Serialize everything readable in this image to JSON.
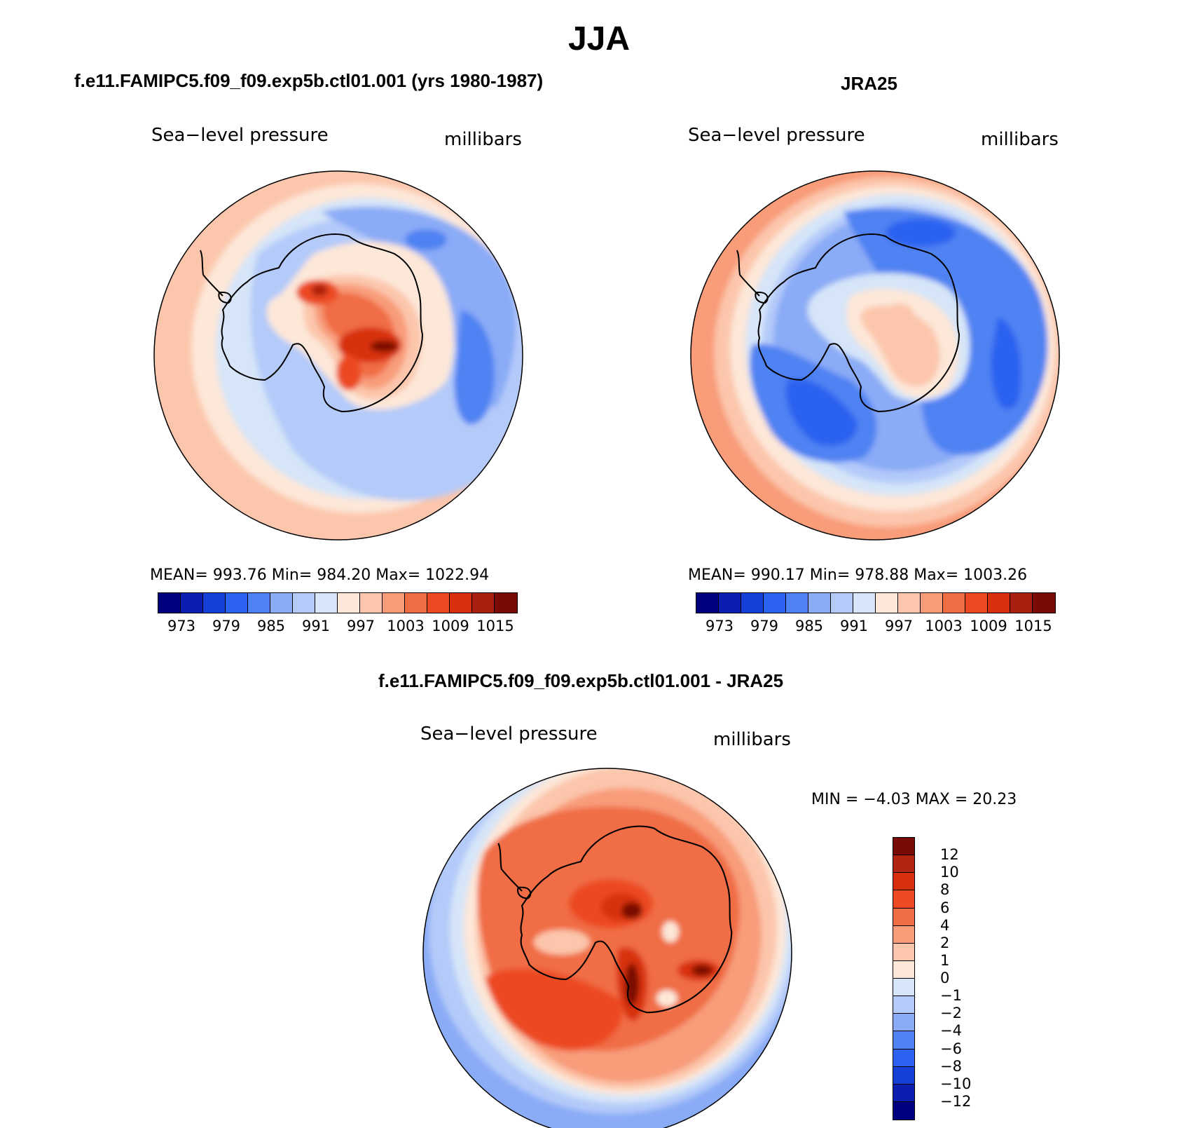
{
  "figure": {
    "title": "JJA"
  },
  "panels": [
    {
      "title": "f.e11.FAMIPC5.f09_f09.exp5b.ctl01.001 (yrs 1980-1987)",
      "variable": "Sea−level pressure",
      "units": "millibars",
      "stats": "MEAN=  993.76    Min=  984.20    Max=  1022.94"
    },
    {
      "title": "JRA25",
      "variable": "Sea−level pressure",
      "units": "millibars",
      "stats": "MEAN=  990.17    Min=  978.88    Max=  1003.26"
    },
    {
      "title": "f.e11.FAMIPC5.f09_f09.exp5b.ctl01.001 - JRA25",
      "variable": "Sea−level pressure",
      "units": "millibars",
      "stats": "MIN =   −4.03  MAX =   20.23"
    }
  ],
  "abs_colorbar": {
    "colors": [
      "#00007f",
      "#0a1fb0",
      "#1740d8",
      "#2b62f0",
      "#4f82f2",
      "#8aabf6",
      "#b4caf9",
      "#d6e5f8",
      "#fde7d8",
      "#fcc6ac",
      "#f89c7a",
      "#f06d44",
      "#ec4a22",
      "#d8300f",
      "#ab1f0e",
      "#7a0a06"
    ],
    "tick_labels": [
      "973",
      "979",
      "985",
      "991",
      "997",
      "1003",
      "1009",
      "1015"
    ]
  },
  "diff_colorbar": {
    "colors_top_to_bottom": [
      "#7a0a06",
      "#b02410",
      "#d8300f",
      "#ec4a22",
      "#f06d44",
      "#f89c7a",
      "#fcc6ac",
      "#fde7d8",
      "#d6e5f8",
      "#b4caf9",
      "#8aabf6",
      "#4f82f2",
      "#2b62f0",
      "#1740d8",
      "#0a1fb0",
      "#00007f"
    ],
    "tick_labels_top_to_bottom": [
      "12",
      "10",
      "8",
      "6",
      "4",
      "2",
      "1",
      "0",
      "−1",
      "−2",
      "−4",
      "−6",
      "−8",
      "−10",
      "−12"
    ]
  }
}
